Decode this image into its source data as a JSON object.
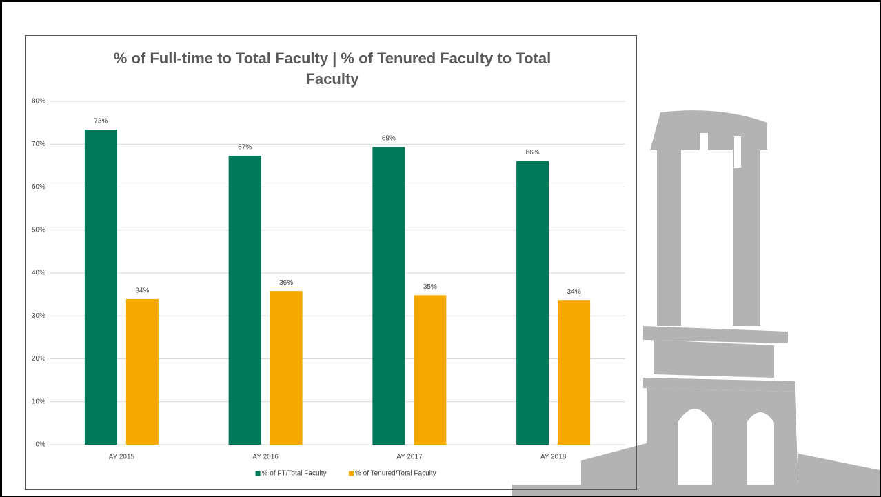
{
  "chart_data": {
    "type": "bar",
    "title": "% of Full-time to Total Faculty | % of Tenured Faculty to Total Faculty",
    "categories": [
      "AY 2015",
      "AY 2016",
      "AY 2017",
      "AY 2018"
    ],
    "series": [
      {
        "name": "% of FT/Total Faculty",
        "color": "#00785a",
        "values": [
          73.4,
          67.3,
          69.4,
          66.1
        ],
        "value_labels": [
          "73%",
          "67%",
          "69%",
          "66%"
        ]
      },
      {
        "name": "% of Tenured/Total Faculty",
        "color": "#f5a800",
        "values": [
          33.9,
          35.8,
          34.8,
          33.7
        ],
        "value_labels": [
          "34%",
          "36%",
          "35%",
          "34%"
        ]
      }
    ],
    "ylim": [
      0,
      80
    ],
    "yticks": [
      {
        "value": 0,
        "label": "0%"
      },
      {
        "value": 10,
        "label": "10%"
      },
      {
        "value": 20,
        "label": "20%"
      },
      {
        "value": 30,
        "label": "30%"
      },
      {
        "value": 40,
        "label": "40%"
      },
      {
        "value": 50,
        "label": "50%"
      },
      {
        "value": 60,
        "label": "60%"
      },
      {
        "value": 70,
        "label": "70%"
      },
      {
        "value": 80,
        "label": "80%"
      }
    ],
    "grid": true,
    "legend": "bottom"
  }
}
